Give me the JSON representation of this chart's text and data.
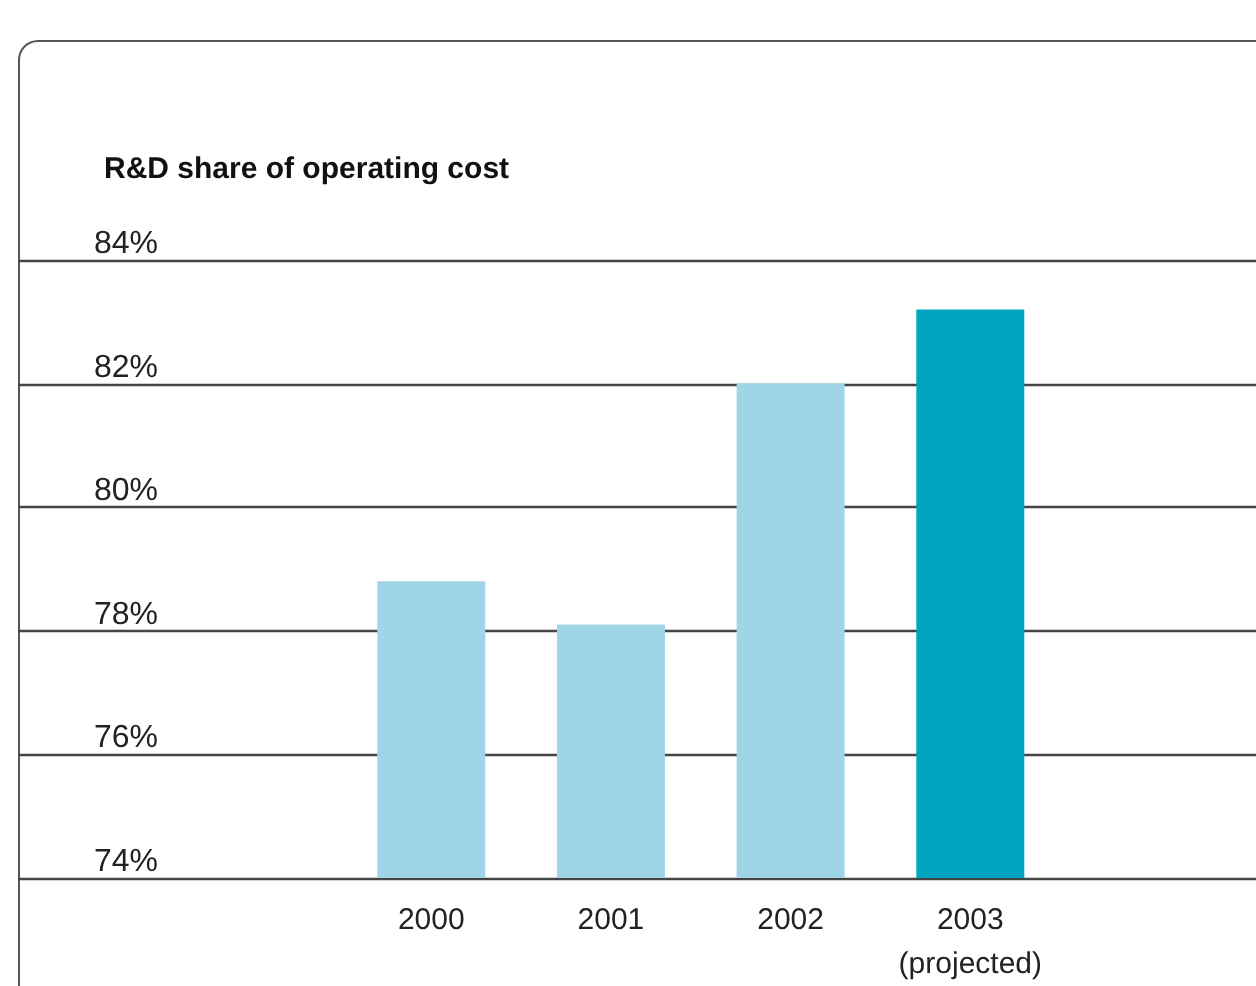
{
  "chart_data": {
    "type": "bar",
    "title": "R&D share of operating cost",
    "categories": [
      "2000",
      "2001",
      "2002",
      "2003\n(projected)"
    ],
    "values": [
      78.8,
      78.1,
      82.0,
      83.2
    ],
    "colors": [
      "#a0d5e8",
      "#a0d5e8",
      "#a0d5e8",
      "#00a6bf"
    ],
    "ylim": [
      74,
      84
    ],
    "yticks": [
      {
        "value": 74,
        "label": "74%"
      },
      {
        "value": 76,
        "label": "76%"
      },
      {
        "value": 78,
        "label": "78%"
      },
      {
        "value": 80,
        "label": "80%"
      },
      {
        "value": 82,
        "label": "82%"
      },
      {
        "value": 84,
        "label": "84%"
      }
    ],
    "grid": "y"
  }
}
